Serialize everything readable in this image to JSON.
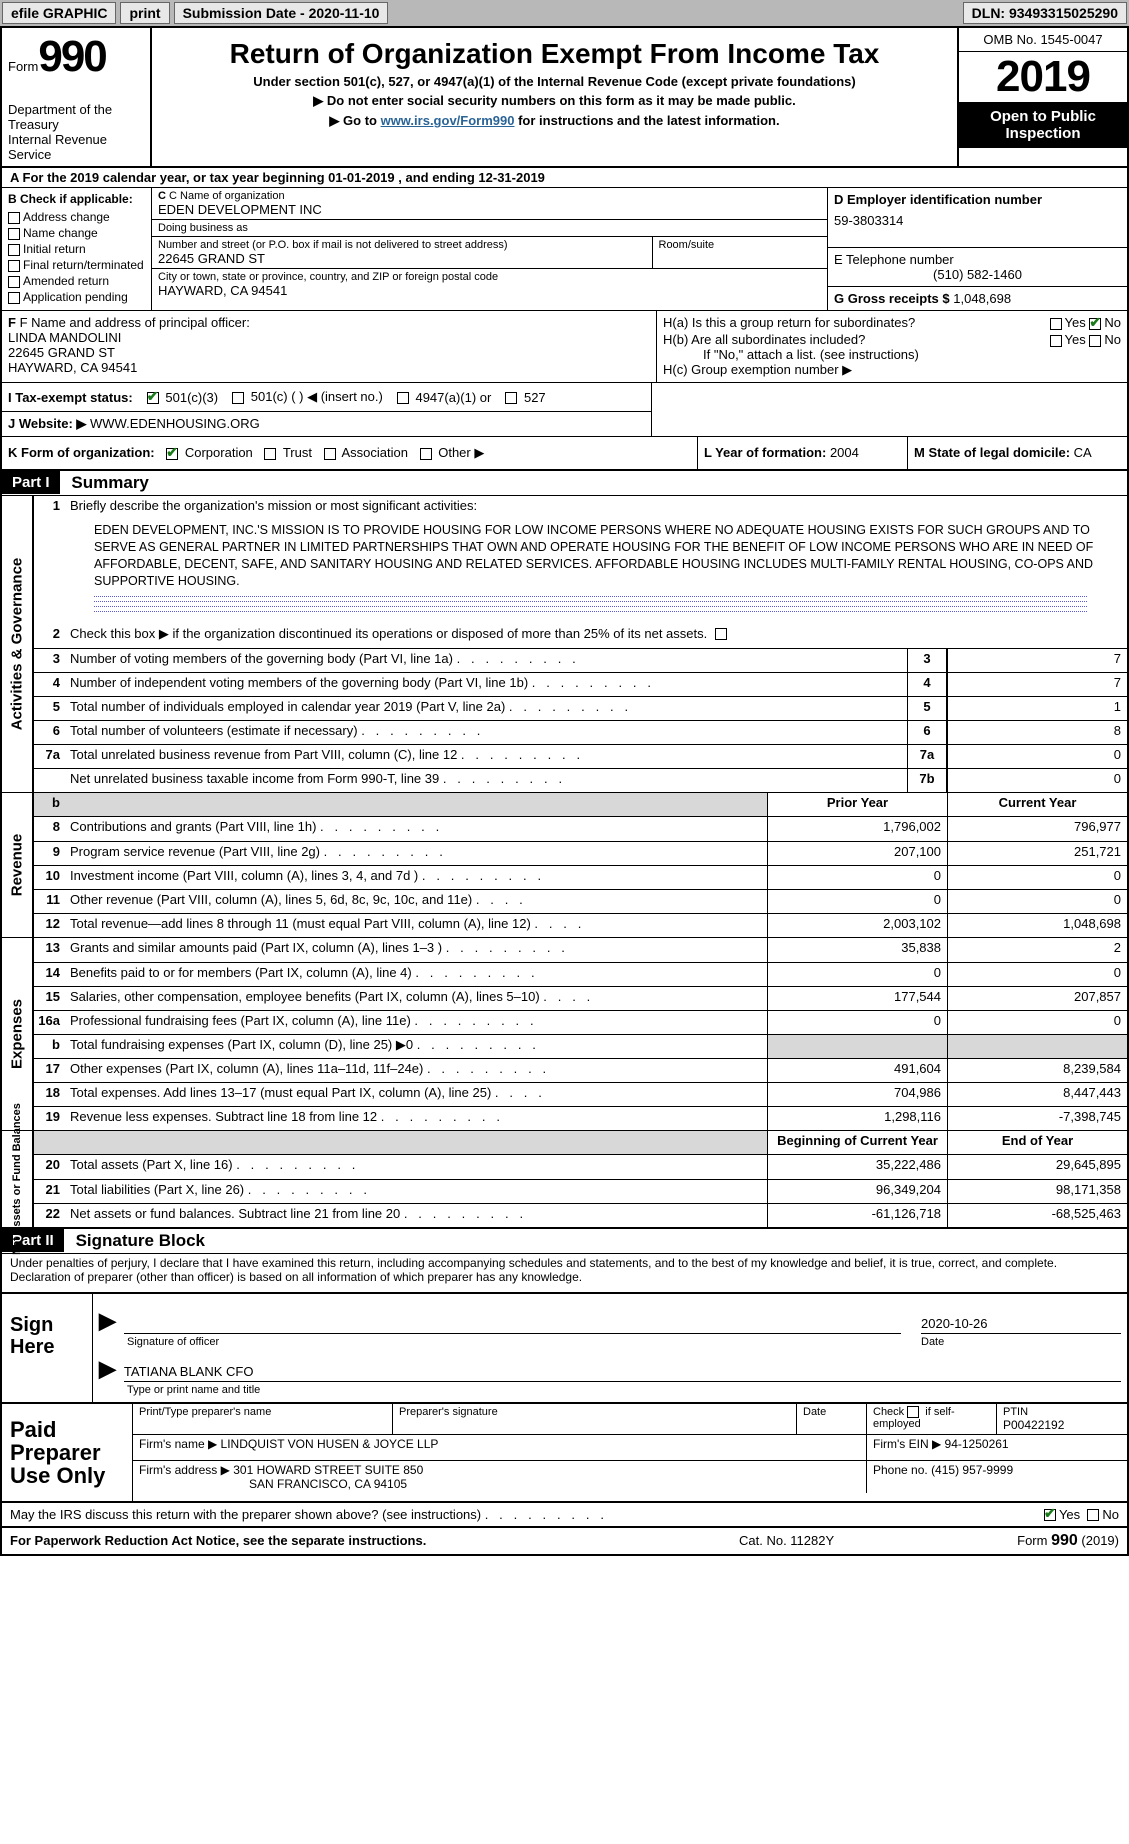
{
  "topbar": {
    "efile": "efile GRAPHIC",
    "print": "print",
    "submission": "Submission Date - 2020-11-10",
    "dln": "DLN: 93493315025290"
  },
  "header": {
    "form_label": "Form",
    "form_num": "990",
    "dept": "Department of the Treasury\nInternal Revenue Service",
    "title": "Return of Organization Exempt From Income Tax",
    "sub1": "Under section 501(c), 527, or 4947(a)(1) of the Internal Revenue Code (except private foundations)",
    "sub2a": "▶ Do not enter social security numbers on this form as it may be made public.",
    "sub2b": "▶ Go to ",
    "link": "www.irs.gov/Form990",
    "sub2c": " for instructions and the latest information.",
    "omb": "OMB No. 1545-0047",
    "year": "2019",
    "open": "Open to Public Inspection"
  },
  "row_a": "A For the 2019 calendar year, or tax year beginning 01-01-2019    , and ending 12-31-2019",
  "box_b": {
    "header": "B Check if applicable:",
    "opts": [
      "Address change",
      "Name change",
      "Initial return",
      "Final return/terminated",
      "Amended return",
      "Application pending"
    ]
  },
  "box_c": {
    "name_lbl": "C Name of organization",
    "name": "EDEN DEVELOPMENT INC",
    "dba_lbl": "Doing business as",
    "dba": "",
    "addr_lbl": "Number and street (or P.O. box if mail is not delivered to street address)",
    "room_lbl": "Room/suite",
    "addr": "22645 GRAND ST",
    "city_lbl": "City or town, state or province, country, and ZIP or foreign postal code",
    "city": "HAYWARD, CA  94541"
  },
  "box_d": {
    "lbl": "D Employer identification number",
    "val": "59-3803314"
  },
  "box_e": {
    "lbl": "E Telephone number",
    "val": "(510) 582-1460"
  },
  "box_g": {
    "lbl": "G Gross receipts $",
    "val": "1,048,698"
  },
  "box_f": {
    "lbl": "F Name and address of principal officer:",
    "name": "LINDA MANDOLINI",
    "addr1": "22645 GRAND ST",
    "addr2": "HAYWARD, CA  94541"
  },
  "box_h": {
    "a": "H(a)  Is this a group return for subordinates?",
    "b": "H(b)  Are all subordinates included?",
    "b_note": "If \"No,\" attach a list. (see instructions)",
    "c": "H(c)  Group exemption number ▶"
  },
  "box_i": {
    "lbl": "I   Tax-exempt status:",
    "opts": [
      "501(c)(3)",
      "501(c) (   ) ◀ (insert no.)",
      "4947(a)(1) or",
      "527"
    ]
  },
  "box_j": {
    "lbl": "J   Website: ▶",
    "val": "WWW.EDENHOUSING.ORG"
  },
  "box_k": {
    "lbl": "K Form of organization:",
    "opts": [
      "Corporation",
      "Trust",
      "Association",
      "Other ▶"
    ]
  },
  "box_l": {
    "lbl": "L Year of formation:",
    "val": "2004"
  },
  "box_m": {
    "lbl": "M State of legal domicile:",
    "val": "CA"
  },
  "part1": {
    "hdr": "Part I",
    "title": "Summary",
    "line1_lbl": "Briefly describe the organization's mission or most significant activities:",
    "mission": "EDEN DEVELOPMENT, INC.'S MISSION IS TO PROVIDE HOUSING FOR LOW INCOME PERSONS WHERE NO ADEQUATE HOUSING EXISTS FOR SUCH GROUPS AND TO SERVE AS GENERAL PARTNER IN LIMITED PARTNERSHIPS THAT OWN AND OPERATE HOUSING FOR THE BENEFIT OF LOW INCOME PERSONS WHO ARE IN NEED OF AFFORDABLE, DECENT, SAFE, AND SANITARY HOUSING AND RELATED SERVICES. AFFORDABLE HOUSING INCLUDES MULTI-FAMILY RENTAL HOUSING, CO-OPS AND SUPPORTIVE HOUSING.",
    "line2": "Check this box ▶       if the organization discontinued its operations or disposed of more than 25% of its net assets.",
    "governance_vert": "Activities & Governance",
    "lines_gov": [
      {
        "n": "3",
        "d": "Number of voting members of the governing body (Part VI, line 1a)",
        "id": "3",
        "v": "7"
      },
      {
        "n": "4",
        "d": "Number of independent voting members of the governing body (Part VI, line 1b)",
        "id": "4",
        "v": "7"
      },
      {
        "n": "5",
        "d": "Total number of individuals employed in calendar year 2019 (Part V, line 2a)",
        "id": "5",
        "v": "1"
      },
      {
        "n": "6",
        "d": "Total number of volunteers (estimate if necessary)",
        "id": "6",
        "v": "8"
      },
      {
        "n": "7a",
        "d": "Total unrelated business revenue from Part VIII, column (C), line 12",
        "id": "7a",
        "v": "0"
      },
      {
        "n": "",
        "d": "Net unrelated business taxable income from Form 990-T, line 39",
        "id": "7b",
        "v": "0"
      }
    ],
    "revenue_vert": "Revenue",
    "prior_hdr": "Prior Year",
    "current_hdr": "Current Year",
    "lines_rev": [
      {
        "n": "8",
        "d": "Contributions and grants (Part VIII, line 1h)",
        "p": "1,796,002",
        "c": "796,977"
      },
      {
        "n": "9",
        "d": "Program service revenue (Part VIII, line 2g)",
        "p": "207,100",
        "c": "251,721"
      },
      {
        "n": "10",
        "d": "Investment income (Part VIII, column (A), lines 3, 4, and 7d )",
        "p": "0",
        "c": "0"
      },
      {
        "n": "11",
        "d": "Other revenue (Part VIII, column (A), lines 5, 6d, 8c, 9c, 10c, and 11e)",
        "p": "0",
        "c": "0"
      },
      {
        "n": "12",
        "d": "Total revenue—add lines 8 through 11 (must equal Part VIII, column (A), line 12)",
        "p": "2,003,102",
        "c": "1,048,698"
      }
    ],
    "expenses_vert": "Expenses",
    "lines_exp": [
      {
        "n": "13",
        "d": "Grants and similar amounts paid (Part IX, column (A), lines 1–3 )",
        "p": "35,838",
        "c": "2"
      },
      {
        "n": "14",
        "d": "Benefits paid to or for members (Part IX, column (A), line 4)",
        "p": "0",
        "c": "0"
      },
      {
        "n": "15",
        "d": "Salaries, other compensation, employee benefits (Part IX, column (A), lines 5–10)",
        "p": "177,544",
        "c": "207,857"
      },
      {
        "n": "16a",
        "d": "Professional fundraising fees (Part IX, column (A), line 11e)",
        "p": "0",
        "c": "0"
      },
      {
        "n": "b",
        "d": "Total fundraising expenses (Part IX, column (D), line 25) ▶0",
        "p": "GREY",
        "c": "GREY"
      },
      {
        "n": "17",
        "d": "Other expenses (Part IX, column (A), lines 11a–11d, 11f–24e)",
        "p": "491,604",
        "c": "8,239,584"
      },
      {
        "n": "18",
        "d": "Total expenses. Add lines 13–17 (must equal Part IX, column (A), line 25)",
        "p": "704,986",
        "c": "8,447,443"
      },
      {
        "n": "19",
        "d": "Revenue less expenses. Subtract line 18 from line 12",
        "p": "1,298,116",
        "c": "-7,398,745"
      }
    ],
    "net_vert": "Net Assets or Fund Balances",
    "begin_hdr": "Beginning of Current Year",
    "end_hdr": "End of Year",
    "lines_net": [
      {
        "n": "20",
        "d": "Total assets (Part X, line 16)",
        "p": "35,222,486",
        "c": "29,645,895"
      },
      {
        "n": "21",
        "d": "Total liabilities (Part X, line 26)",
        "p": "96,349,204",
        "c": "98,171,358"
      },
      {
        "n": "22",
        "d": "Net assets or fund balances. Subtract line 21 from line 20",
        "p": "-61,126,718",
        "c": "-68,525,463"
      }
    ]
  },
  "part2": {
    "hdr": "Part II",
    "title": "Signature Block",
    "decl": "Under penalties of perjury, I declare that I have examined this return, including accompanying schedules and statements, and to the best of my knowledge and belief, it is true, correct, and complete. Declaration of preparer (other than officer) is based on all information of which preparer has any knowledge.",
    "sign_here": "Sign Here",
    "sig_date": "2020-10-26",
    "sig_lbl": "Signature of officer",
    "date_lbl": "Date",
    "name_title": "TATIANA BLANK CFO",
    "name_title_lbl": "Type or print name and title"
  },
  "preparer": {
    "left": "Paid Preparer Use Only",
    "r1": {
      "c1_lbl": "Print/Type preparer's name",
      "c1": "",
      "c2_lbl": "Preparer's signature",
      "c2": "",
      "c3_lbl": "Date",
      "c3": "",
      "c4_lbl": "Check         if self-employed",
      "c5_lbl": "PTIN",
      "c5": "P00422192"
    },
    "r2": {
      "lbl": "Firm's name    ▶",
      "val": "LINDQUIST VON HUSEN & JOYCE LLP",
      "ein_lbl": "Firm's EIN ▶",
      "ein": "94-1250261"
    },
    "r3": {
      "lbl": "Firm's address ▶",
      "val1": "301 HOWARD STREET SUITE 850",
      "val2": "SAN FRANCISCO, CA  94105",
      "phone_lbl": "Phone no.",
      "phone": "(415) 957-9999"
    }
  },
  "discuss": "May the IRS discuss this return with the preparer shown above? (see instructions)",
  "footer": {
    "left": "For Paperwork Reduction Act Notice, see the separate instructions.",
    "mid": "Cat. No. 11282Y",
    "right_a": "Form ",
    "right_b": "990",
    "right_c": " (2019)"
  }
}
